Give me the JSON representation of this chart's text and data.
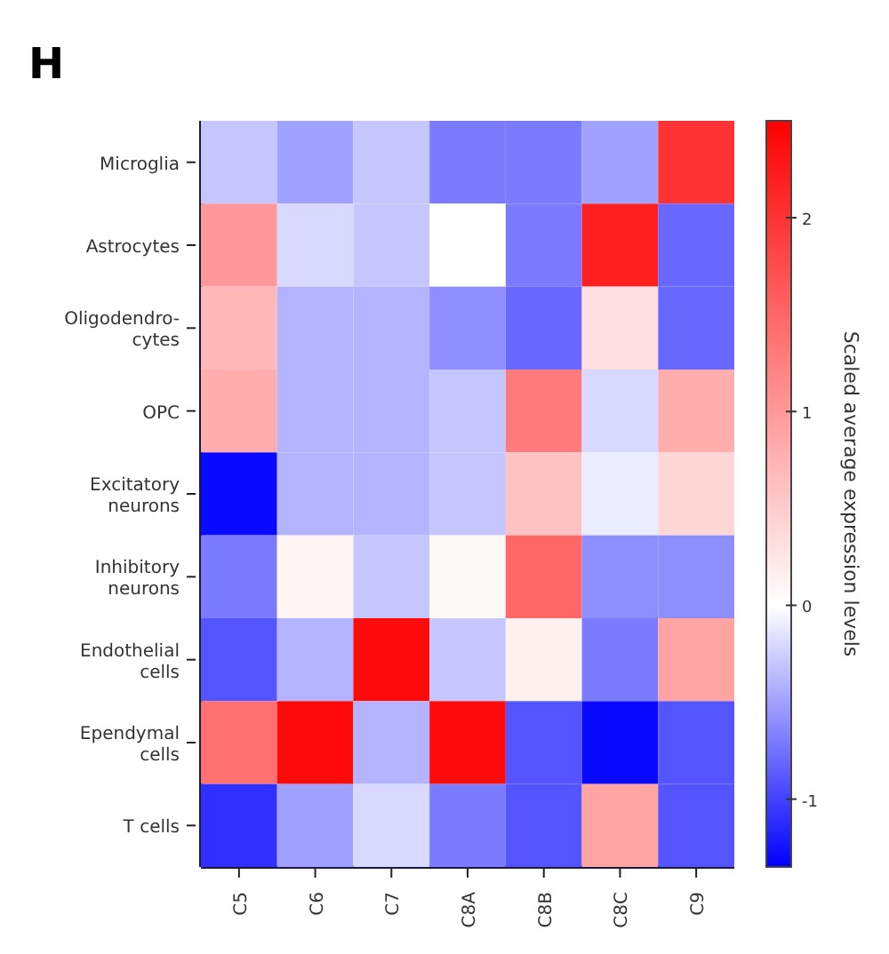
{
  "chart_data": {
    "type": "heatmap",
    "title": "H",
    "clabel": "Scaled average expression levels",
    "categories": [
      "C5",
      "C6",
      "C7",
      "C8A",
      "C8B",
      "C8C",
      "C9"
    ],
    "y_categories": [
      "Microglia",
      "Astrocytes",
      "Oligodendro-cytes",
      "OPC",
      "Excitatory neurons",
      "Inhibitory neurons",
      "Endothelial cells",
      "Ependymal cells",
      "T cells"
    ],
    "cells": [
      [
        -0.3,
        -0.5,
        -0.3,
        -0.7,
        -0.7,
        -0.5,
        2.0
      ],
      [
        1.0,
        -0.2,
        -0.3,
        0.0,
        -0.7,
        2.2,
        -0.8
      ],
      [
        0.7,
        -0.4,
        -0.4,
        -0.6,
        -0.8,
        0.3,
        -0.8
      ],
      [
        0.8,
        -0.4,
        -0.4,
        -0.3,
        1.3,
        -0.2,
        0.8
      ],
      [
        -1.3,
        -0.4,
        -0.4,
        -0.3,
        0.6,
        -0.1,
        0.4
      ],
      [
        -0.7,
        0.1,
        -0.3,
        0.05,
        1.5,
        -0.6,
        -0.6
      ],
      [
        -0.9,
        -0.4,
        2.4,
        -0.3,
        0.15,
        -0.7,
        0.9
      ],
      [
        1.4,
        2.4,
        -0.4,
        2.4,
        -0.9,
        -1.3,
        -0.9
      ],
      [
        -1.1,
        -0.5,
        -0.2,
        -0.7,
        -0.9,
        0.9,
        -0.9
      ]
    ],
    "clim": [
      -1.35,
      2.5
    ],
    "cticks": [
      -1,
      0,
      1,
      2
    ]
  }
}
